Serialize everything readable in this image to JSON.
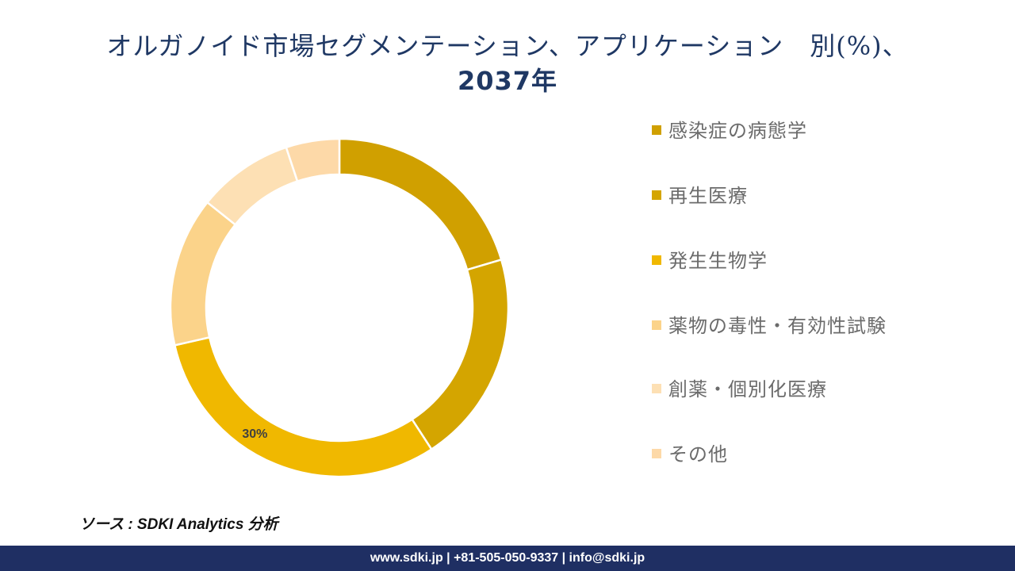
{
  "title": {
    "line1": "オルガノイド市場セグメンテーション、アプリケーション　別(%)、",
    "line2": "2037年"
  },
  "source": "ソース : SDKI Analytics 分析",
  "footer": "www.sdki.jp | +81-505-050-9337 | info@sdki.jp",
  "colors": {
    "title": "#1f3864",
    "footer_bg": "#1f2f63"
  },
  "chart_data": {
    "type": "pie",
    "variant": "donut",
    "start_angle_deg": 0,
    "direction": "clockwise",
    "series": [
      {
        "name": "感染症の病態学",
        "value": 20,
        "color": "#d0a000",
        "data_label": ""
      },
      {
        "name": "再生医療",
        "value": 20,
        "color": "#d4a500",
        "data_label": ""
      },
      {
        "name": "発生生物学",
        "value": 30,
        "color": "#f0b800",
        "data_label": "30%"
      },
      {
        "name": "薬物の毒性・有効性試験",
        "value": 14,
        "color": "#fbd38a",
        "data_label": ""
      },
      {
        "name": "創薬・個別化医療",
        "value": 9,
        "color": "#fde0b4",
        "data_label": ""
      },
      {
        "name": "その他",
        "value": 5,
        "color": "#fdd9a8",
        "data_label": ""
      }
    ],
    "legend_position": "right"
  }
}
